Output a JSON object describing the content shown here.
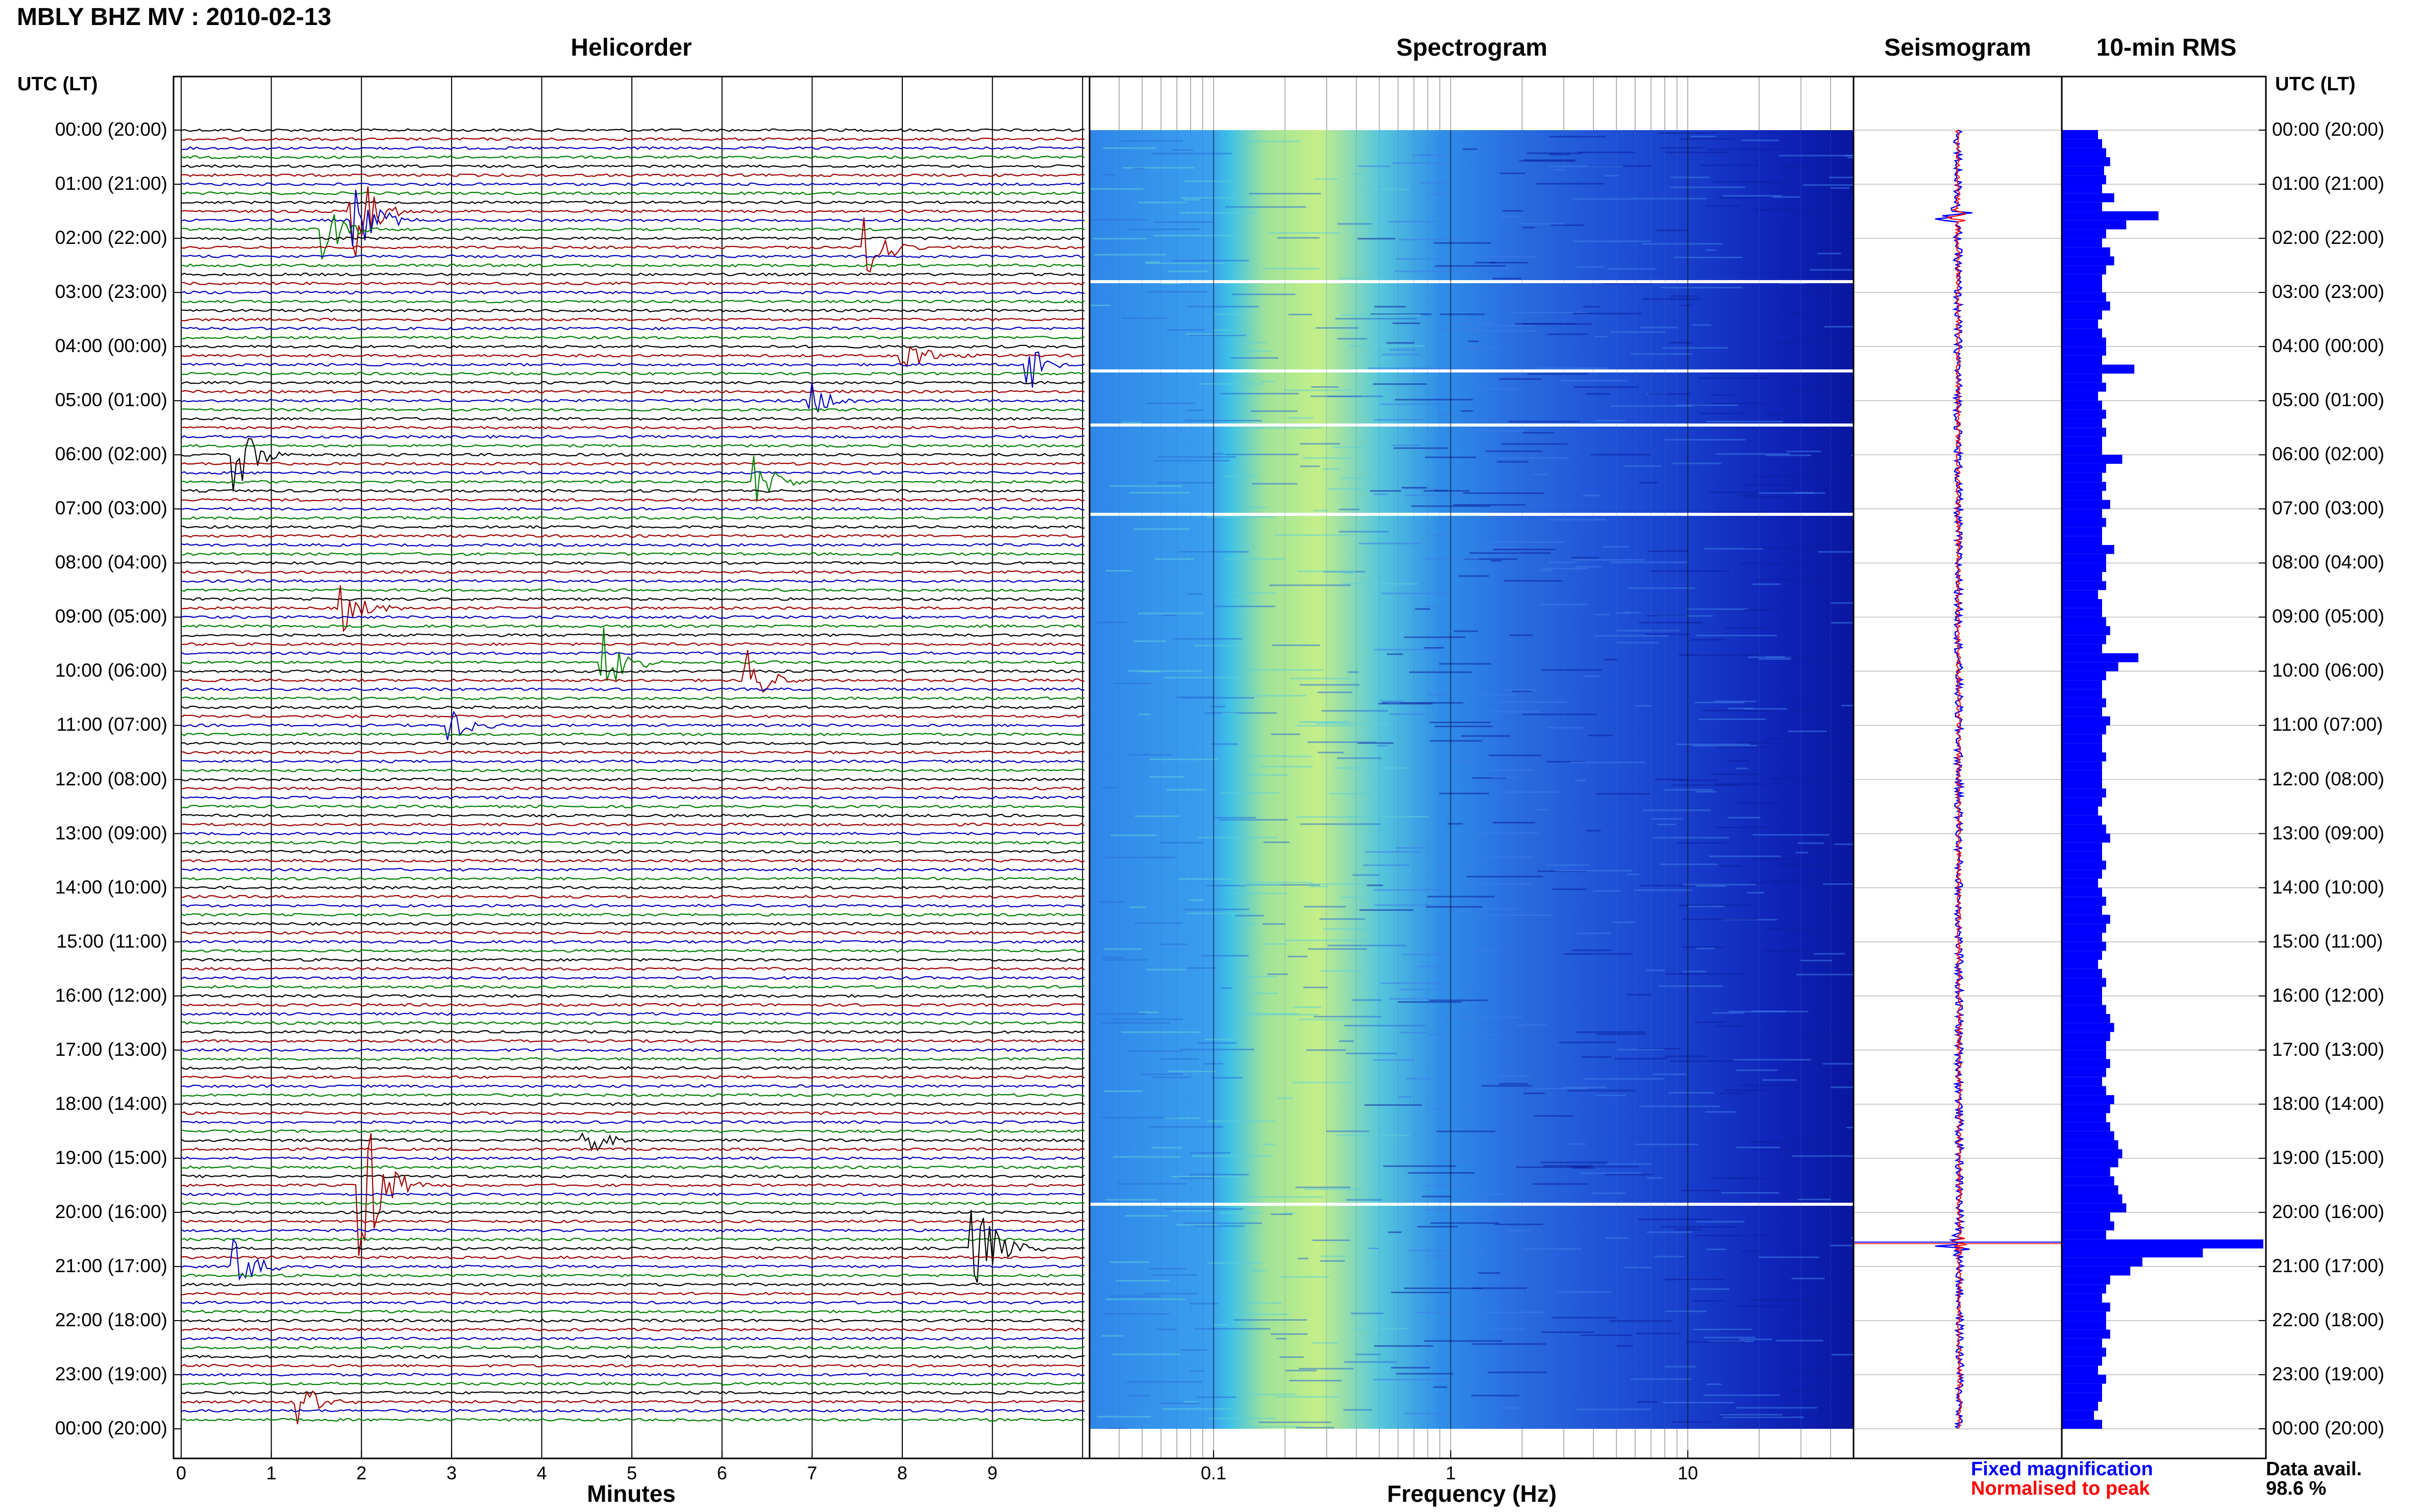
{
  "header": {
    "title": "MBLY BHZ MV : 2010-02-13",
    "utc_label_left": "UTC (LT)",
    "utc_label_right": "UTC (LT)"
  },
  "panels": {
    "helicorder": "Helicorder",
    "spectrogram": "Spectrogram",
    "seismogram": "Seismogram",
    "rms": "10-min RMS"
  },
  "axes": {
    "helicorder_xlabel": "Minutes",
    "spectrogram_xlabel": "Frequency (Hz)"
  },
  "legend": {
    "fixed": "Fixed magnification",
    "normalised": "Normalised to peak",
    "fixed_color": "#0000ff",
    "normalised_color": "#ff0000"
  },
  "data_availability": {
    "label": "Data avail.",
    "value": "98.6 %"
  },
  "time_labels": [
    "00:00 (20:00)",
    "01:00 (21:00)",
    "02:00 (22:00)",
    "03:00 (23:00)",
    "04:00 (00:00)",
    "05:00 (01:00)",
    "06:00 (02:00)",
    "07:00 (03:00)",
    "08:00 (04:00)",
    "09:00 (05:00)",
    "10:00 (06:00)",
    "11:00 (07:00)",
    "12:00 (08:00)",
    "13:00 (09:00)",
    "14:00 (10:00)",
    "15:00 (11:00)",
    "16:00 (12:00)",
    "17:00 (13:00)",
    "18:00 (14:00)",
    "19:00 (15:00)",
    "20:00 (16:00)",
    "21:00 (17:00)",
    "22:00 (18:00)",
    "23:00 (19:00)",
    "00:00 (20:00)"
  ],
  "chart_data": [
    {
      "type": "line",
      "name": "helicorder",
      "xlabel": "Minutes",
      "xlim": [
        0,
        10
      ],
      "x_ticks": [
        "0",
        "1",
        "2",
        "3",
        "4",
        "5",
        "6",
        "7",
        "8",
        "9"
      ],
      "lines_per_hour": 6,
      "trace_colors": [
        "#000000",
        "#a00000",
        "#0000c0",
        "#008000"
      ],
      "events": [
        {
          "line": 9,
          "minute": 1.9,
          "amp": 3.0
        },
        {
          "line": 10,
          "minute": 1.95,
          "amp": 2.0
        },
        {
          "line": 11,
          "minute": 1.6,
          "amp": 1.6
        },
        {
          "line": 13,
          "minute": 7.6,
          "amp": 1.8
        },
        {
          "line": 25,
          "minute": 8.0,
          "amp": 1.2
        },
        {
          "line": 26,
          "minute": 9.4,
          "amp": 1.6
        },
        {
          "line": 30,
          "minute": 7.0,
          "amp": 1.0
        },
        {
          "line": 36,
          "minute": 0.6,
          "amp": 2.2
        },
        {
          "line": 39,
          "minute": 6.4,
          "amp": 1.5
        },
        {
          "line": 53,
          "minute": 1.8,
          "amp": 1.2
        },
        {
          "line": 59,
          "minute": 4.7,
          "amp": 2.0
        },
        {
          "line": 61,
          "minute": 6.3,
          "amp": 1.6
        },
        {
          "line": 66,
          "minute": 3.0,
          "amp": 1.0
        },
        {
          "line": 112,
          "minute": 4.5,
          "amp": 1.0
        },
        {
          "line": 117,
          "minute": 2.0,
          "amp": 5.0
        },
        {
          "line": 124,
          "minute": 8.8,
          "amp": 3.2
        },
        {
          "line": 126,
          "minute": 0.6,
          "amp": 1.5
        },
        {
          "line": 141,
          "minute": 1.3,
          "amp": 1.2
        }
      ]
    },
    {
      "type": "heatmap",
      "name": "spectrogram",
      "xlabel": "Frequency (Hz)",
      "x_scale": "log",
      "xlim": [
        0.03,
        50
      ],
      "x_ticks": [
        0.1,
        1,
        10
      ],
      "peak_band_hz": [
        0.15,
        0.6
      ],
      "gaps_hours": [
        2.8,
        4.45,
        5.45,
        7.1,
        19.85
      ]
    },
    {
      "type": "line",
      "name": "seismogram",
      "series": [
        {
          "name": "Fixed magnification",
          "color": "#0000ff"
        },
        {
          "name": "Normalised to peak",
          "color": "#ff0000"
        }
      ],
      "spike_hours": [
        1.6,
        20.6
      ]
    },
    {
      "type": "bar",
      "name": "10-min RMS",
      "orientation": "horizontal",
      "color": "#0000ff",
      "interval_minutes": 10,
      "values": [
        18,
        20,
        22,
        24,
        21,
        22,
        20,
        26,
        20,
        48,
        32,
        22,
        20,
        24,
        26,
        22,
        20,
        20,
        22,
        24,
        20,
        18,
        20,
        22,
        22,
        20,
        36,
        20,
        22,
        18,
        20,
        22,
        20,
        22,
        20,
        20,
        30,
        22,
        20,
        22,
        20,
        24,
        20,
        22,
        20,
        20,
        26,
        22,
        22,
        20,
        22,
        18,
        20,
        20,
        22,
        24,
        22,
        20,
        38,
        28,
        22,
        20,
        20,
        22,
        20,
        24,
        22,
        20,
        20,
        22,
        20,
        20,
        20,
        22,
        20,
        18,
        20,
        22,
        24,
        20,
        20,
        22,
        20,
        18,
        20,
        22,
        20,
        24,
        22,
        20,
        22,
        20,
        18,
        20,
        22,
        20,
        20,
        22,
        24,
        26,
        24,
        22,
        22,
        24,
        22,
        20,
        22,
        26,
        24,
        22,
        24,
        26,
        28,
        30,
        28,
        24,
        26,
        28,
        30,
        32,
        24,
        26,
        22,
        100,
        70,
        40,
        34,
        24,
        22,
        20,
        24,
        22,
        22,
        24,
        20,
        22,
        20,
        18,
        22,
        20,
        20,
        18,
        16,
        20
      ]
    }
  ]
}
